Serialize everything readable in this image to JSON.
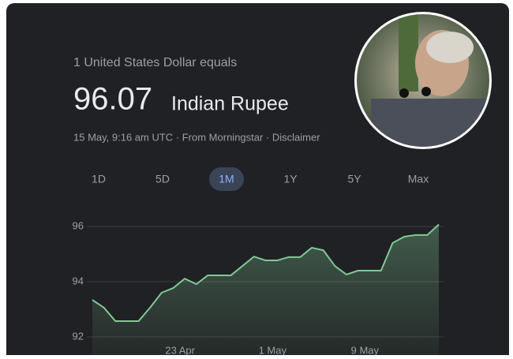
{
  "header": {
    "intro": "1 United States Dollar equals",
    "amount": "96.07",
    "currency": "Indian Rupee",
    "meta": "15 May, 9:16 am UTC · From Morningstar · Disclaimer"
  },
  "tabs": {
    "items": [
      "1D",
      "5D",
      "1M",
      "1Y",
      "5Y",
      "Max"
    ],
    "selected": 2
  },
  "chart_data": {
    "type": "area",
    "color": "#81c995",
    "x": [
      0,
      1,
      2,
      3,
      4,
      5,
      6,
      7,
      8,
      9,
      10,
      11,
      12,
      13,
      14,
      15,
      16,
      17,
      18,
      19,
      20,
      21,
      22,
      23,
      24,
      25,
      26,
      27,
      28,
      29,
      30
    ],
    "values": [
      93.34,
      93.06,
      92.57,
      92.57,
      92.57,
      93.06,
      93.6,
      93.77,
      94.11,
      93.91,
      94.23,
      94.23,
      94.23,
      94.57,
      94.91,
      94.77,
      94.77,
      94.89,
      94.89,
      95.23,
      95.14,
      94.57,
      94.26,
      94.4,
      94.4,
      94.4,
      95.4,
      95.63,
      95.69,
      95.69,
      96.07
    ],
    "xlim": [
      0,
      30
    ],
    "xticks": [
      {
        "value": 7.6,
        "label": "23 Apr"
      },
      {
        "value": 15.6,
        "label": "1 May"
      },
      {
        "value": 23.6,
        "label": "9 May"
      }
    ],
    "ylim": [
      92,
      96
    ],
    "yticks": [
      92,
      94,
      96
    ],
    "grid": true
  }
}
